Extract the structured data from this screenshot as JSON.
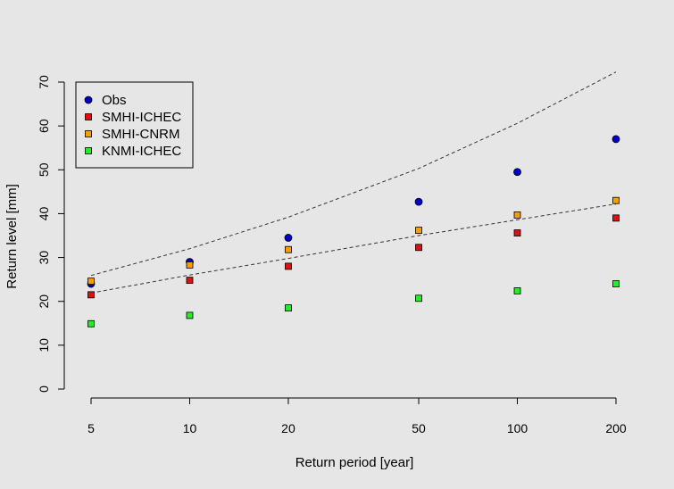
{
  "chart_data": {
    "type": "scatter",
    "title": "",
    "xlabel": "Return period [year]",
    "ylabel": "Return level [mm]",
    "x_scale": "log",
    "xlim": [
      4.5,
      200
    ],
    "ylim": [
      0,
      70
    ],
    "x_ticks": [
      5,
      10,
      20,
      50,
      100,
      200
    ],
    "x_tick_labels": [
      "5",
      "10",
      "20",
      "50",
      "100",
      "200"
    ],
    "y_ticks": [
      0,
      10,
      20,
      30,
      40,
      50,
      60,
      70
    ],
    "y_tick_labels": [
      "0",
      "10",
      "20",
      "30",
      "40",
      "50",
      "60",
      "70"
    ],
    "grid": false,
    "legend_position": "top-left",
    "x": [
      5,
      10,
      20,
      50,
      100,
      200
    ],
    "series": [
      {
        "name": "Obs",
        "marker": "circle",
        "color": "#0000cc",
        "values": [
          24.0,
          29.0,
          34.5,
          42.7,
          49.5,
          57.0
        ]
      },
      {
        "name": "SMHI-ICHEC",
        "marker": "square",
        "color": "#dd1111",
        "values": [
          21.5,
          24.8,
          28.0,
          32.3,
          35.6,
          39.0
        ]
      },
      {
        "name": "SMHI-CNRM",
        "marker": "square",
        "color": "#f5a000",
        "values": [
          24.6,
          28.3,
          31.8,
          36.2,
          39.7,
          43.0
        ]
      },
      {
        "name": "KNMI-ICHEC",
        "marker": "square",
        "color": "#22ee22",
        "values": [
          14.9,
          16.8,
          18.5,
          20.7,
          22.4,
          24.0
        ]
      }
    ],
    "lines": [
      {
        "style": "dashed",
        "color": "#333333",
        "x": [
          5,
          10,
          20,
          50,
          100,
          200
        ],
        "y": [
          25.9,
          32.0,
          39.2,
          50.3,
          60.6,
          72.3
        ]
      },
      {
        "style": "dashed",
        "color": "#333333",
        "x": [
          5,
          10,
          20,
          50,
          100,
          200
        ],
        "y": [
          21.9,
          26.0,
          29.8,
          35.0,
          38.6,
          42.2
        ]
      }
    ]
  }
}
